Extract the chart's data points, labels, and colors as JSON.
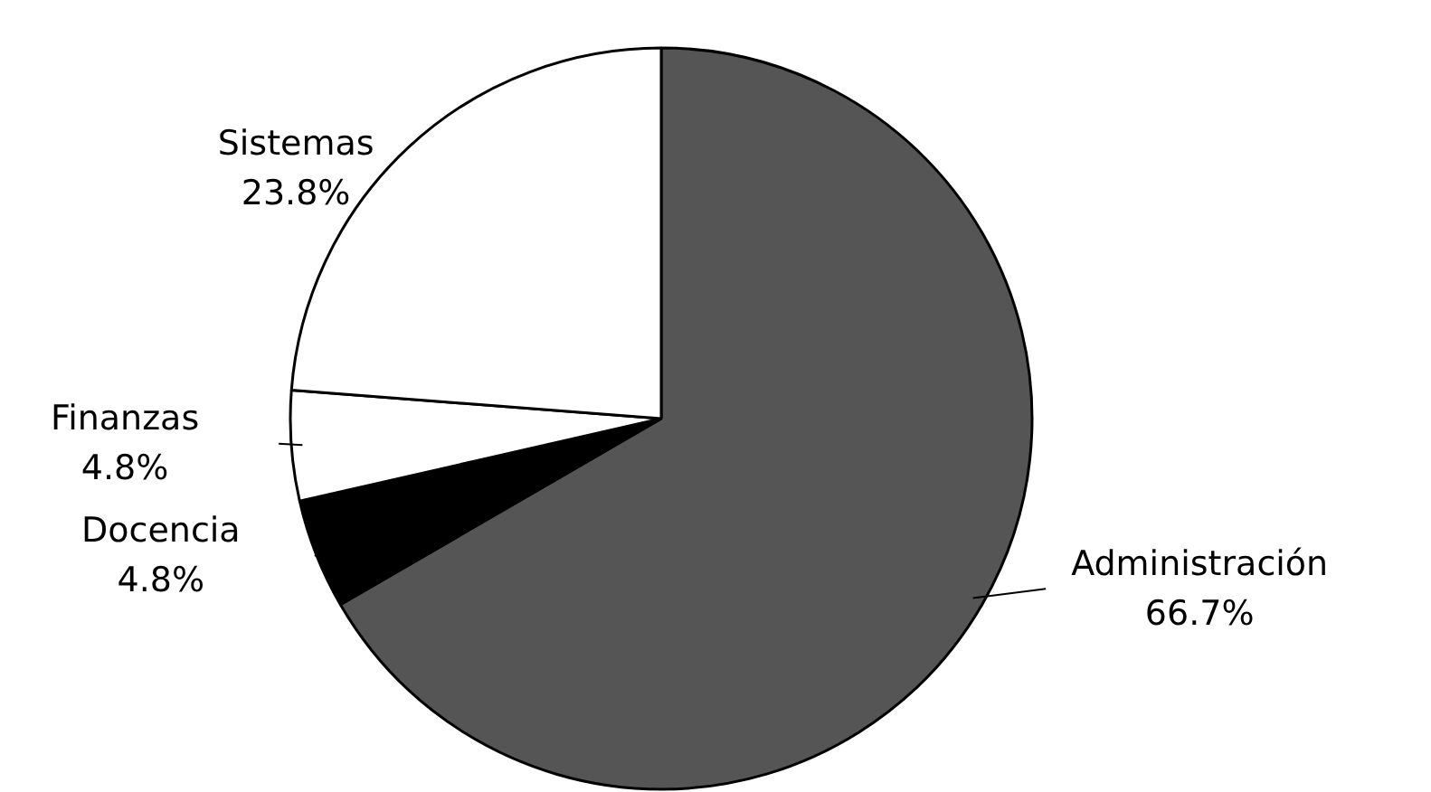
{
  "chart_data": {
    "type": "pie",
    "categories": [
      "Administración",
      "Docencia",
      "Finanzas",
      "Sistemas"
    ],
    "values": [
      66.7,
      4.8,
      4.8,
      23.8
    ],
    "colors": [
      "#555555",
      "#000000",
      "#ffffff",
      "#ffffff"
    ],
    "value_labels": [
      "66.7%",
      "4.8%",
      "4.8%",
      "23.8%"
    ]
  }
}
